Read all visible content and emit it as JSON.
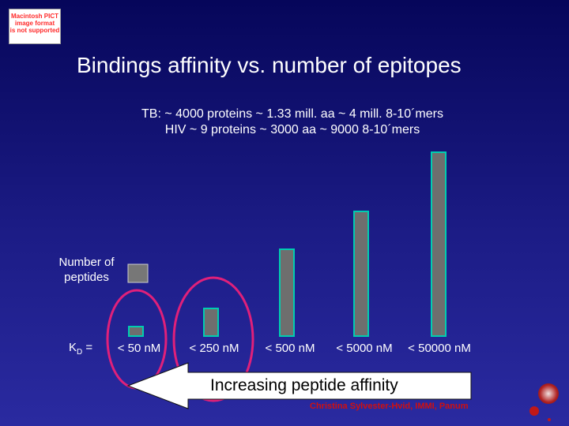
{
  "placeholder": {
    "lines": [
      "Macintosh PICT",
      "image format",
      "is not supported"
    ]
  },
  "title": "Bindings affinity vs. number of epitopes",
  "subtitle": {
    "line1": "TB: ~ 4000 proteins ~ 1.33 mill. aa ~ 4 mill. 8-10´mers",
    "line2": "HIV ~ 9 proteins ~ 3000 aa ~ 9000 8-10´mers"
  },
  "arrow_label": "Increasing peptide affinity",
  "credit": "Christina Sylvester-Hvid, IMMI, Panum",
  "colors": {
    "bar_fill": "#6e6e6e",
    "bar_stroke": "#00cdb0",
    "circle": "#e0207a",
    "arrow_fill": "#ffffff",
    "legend_box_fill": "#777777"
  },
  "chart_data": {
    "type": "bar",
    "ylabel": "Number of peptides",
    "xlabel_prefix": "K",
    "xlabel_sub": "D",
    "xlabel_suffix": " =",
    "categories": [
      "< 50 nM",
      "< 250 nM",
      "< 500 nM",
      "< 5000 nM",
      "< 50000 nM"
    ],
    "values": [
      12,
      35,
      110,
      158,
      233
    ],
    "highlighted": [
      "< 50 nM",
      "< 250 nM"
    ],
    "axis_ticks": false,
    "grid": false,
    "legend": "none"
  }
}
